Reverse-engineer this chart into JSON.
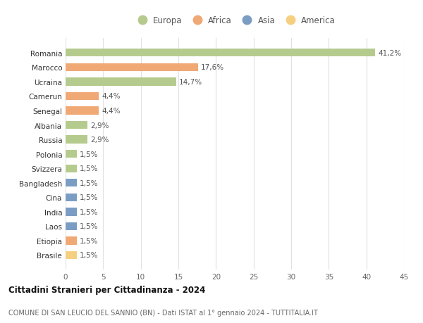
{
  "countries": [
    "Romania",
    "Marocco",
    "Ucraina",
    "Camerun",
    "Senegal",
    "Albania",
    "Russia",
    "Polonia",
    "Svizzera",
    "Bangladesh",
    "Cina",
    "India",
    "Laos",
    "Etiopia",
    "Brasile"
  ],
  "values": [
    41.2,
    17.6,
    14.7,
    4.4,
    4.4,
    2.9,
    2.9,
    1.5,
    1.5,
    1.5,
    1.5,
    1.5,
    1.5,
    1.5,
    1.5
  ],
  "labels": [
    "41,2%",
    "17,6%",
    "14,7%",
    "4,4%",
    "4,4%",
    "2,9%",
    "2,9%",
    "1,5%",
    "1,5%",
    "1,5%",
    "1,5%",
    "1,5%",
    "1,5%",
    "1,5%",
    "1,5%"
  ],
  "colors": [
    "#b5cb8e",
    "#f0a875",
    "#b5cb8e",
    "#f0a875",
    "#f0a875",
    "#b5cb8e",
    "#b5cb8e",
    "#b5cb8e",
    "#b5cb8e",
    "#7b9dc4",
    "#7b9dc4",
    "#7b9dc4",
    "#7b9dc4",
    "#f0a875",
    "#f5d080"
  ],
  "legend_labels": [
    "Europa",
    "Africa",
    "Asia",
    "America"
  ],
  "legend_colors": [
    "#b5cb8e",
    "#f0a875",
    "#7b9dc4",
    "#f5d080"
  ],
  "title": "Cittadini Stranieri per Cittadinanza - 2024",
  "subtitle": "COMUNE DI SAN LEUCIO DEL SANNIO (BN) - Dati ISTAT al 1° gennaio 2024 - TUTTITALIA.IT",
  "xlim": [
    0,
    45
  ],
  "xticks": [
    0,
    5,
    10,
    15,
    20,
    25,
    30,
    35,
    40,
    45
  ],
  "bg_color": "#ffffff",
  "grid_color": "#e0e0e0",
  "bar_height": 0.55
}
